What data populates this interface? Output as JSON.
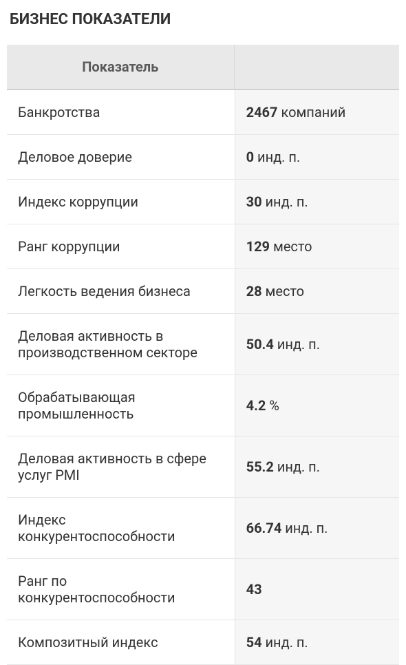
{
  "title": "БИЗНЕС ПОКАЗАТЕЛИ",
  "table": {
    "header": {
      "indicator": "Показатель",
      "value": ""
    },
    "rows": [
      {
        "label": "Банкротства",
        "value": "2467",
        "unit": "компаний"
      },
      {
        "label": "Деловое доверие",
        "value": "0",
        "unit": "инд. п."
      },
      {
        "label": "Индекс коррупции",
        "value": "30",
        "unit": "инд. п."
      },
      {
        "label": "Ранг коррупции",
        "value": "129",
        "unit": "место"
      },
      {
        "label": "Легкость ведения бизнеса",
        "value": "28",
        "unit": "место"
      },
      {
        "label": "Деловая активность в производственном секторе",
        "value": "50.4",
        "unit": "инд. п."
      },
      {
        "label": "Обрабатывающая промышленность",
        "value": "4.2",
        "unit": "%"
      },
      {
        "label": "Деловая активность в сфере услуг PMI",
        "value": "55.2",
        "unit": "инд. п."
      },
      {
        "label": "Индекс конкурентоспособности",
        "value": "66.74",
        "unit": "инд. п."
      },
      {
        "label": "Ранг по конкурентоспособности",
        "value": "43",
        "unit": ""
      },
      {
        "label": "Композитный индекс",
        "value": "54",
        "unit": "инд. п."
      }
    ]
  },
  "colors": {
    "title_text": "#333333",
    "header_bg": "#e9e9e9",
    "header_text": "#5a5a5a",
    "label_bg": "#ffffff",
    "value_bg": "#f6f6f6",
    "text": "#333333",
    "border": "#e5e5e5"
  }
}
